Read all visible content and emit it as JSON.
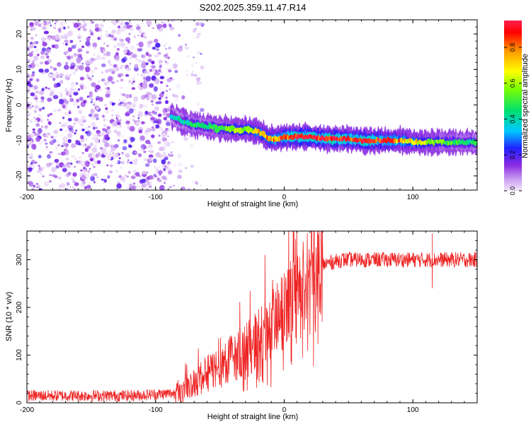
{
  "title": "S202.2025.359.11.47.R14",
  "chart_data": [
    {
      "type": "heatmap",
      "xlabel": "Height of straight line (km)",
      "ylabel": "Frequency (Hz)",
      "xlim": [
        -200,
        150
      ],
      "ylim": [
        -24,
        24
      ],
      "xticks": [
        -200,
        -100,
        0,
        100
      ],
      "yticks": [
        -20,
        -10,
        0,
        10,
        20
      ],
      "colorbar": {
        "label": "Normalized spectral amplitude",
        "range": [
          0,
          0.95
        ],
        "ticks": [
          "0.0",
          "0.2",
          "0.4",
          "0.6",
          "0.8"
        ]
      },
      "noise_region_x": [
        -200,
        -75
      ],
      "trace": {
        "x": [
          -88,
          -80,
          -70,
          -60,
          -50,
          -40,
          -30,
          -20,
          -12,
          -5,
          0,
          10,
          20,
          30,
          40,
          50,
          60,
          70,
          80,
          90,
          100,
          110,
          120,
          130,
          140,
          150
        ],
        "y": [
          -3,
          -4.5,
          -5.5,
          -6,
          -6.5,
          -7,
          -7,
          -7.5,
          -9.5,
          -9.5,
          -9,
          -9,
          -9,
          -9.5,
          -9.5,
          -9.5,
          -10,
          -10,
          -10,
          -10,
          -10.5,
          -10.5,
          -10.5,
          -10.5,
          -10.5,
          -10.5
        ],
        "peak_amplitude": [
          0.35,
          0.4,
          0.45,
          0.45,
          0.5,
          0.6,
          0.6,
          0.7,
          0.75,
          0.8,
          0.85,
          0.95,
          0.95,
          0.9,
          0.95,
          0.85,
          0.9,
          0.9,
          0.85,
          0.75,
          0.7,
          0.6,
          0.55,
          0.5,
          0.45,
          0.45
        ]
      }
    },
    {
      "type": "line",
      "color": "#ee2222",
      "xlabel": "Height of straight line (km)",
      "ylabel": "SNR (10 * v/v)",
      "xlim": [
        -200,
        150
      ],
      "ylim": [
        0,
        360
      ],
      "xticks": [
        -200,
        -100,
        0,
        100
      ],
      "yticks": [
        0,
        100,
        200,
        300
      ],
      "mean_curve": {
        "x": [
          -200,
          -120,
          -85,
          -75,
          -60,
          -45,
          -30,
          -20,
          -10,
          0,
          10,
          20,
          30,
          45,
          60,
          100,
          150
        ],
        "y": [
          15,
          15,
          20,
          35,
          60,
          90,
          110,
          135,
          160,
          190,
          225,
          265,
          290,
          300,
          300,
          300,
          300
        ]
      },
      "spikes": [
        {
          "x": -15,
          "y": 310
        },
        {
          "x": 115,
          "y": 355
        },
        {
          "x": 115,
          "y": 240
        }
      ]
    }
  ]
}
